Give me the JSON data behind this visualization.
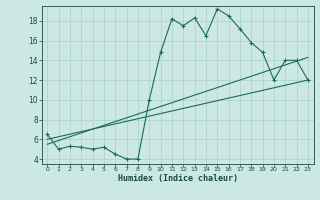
{
  "xlabel": "Humidex (Indice chaleur)",
  "ylabel": "",
  "bg_color": "#cce8e4",
  "grid_color": "#aad0cc",
  "line_color": "#1a6b5a",
  "xlim": [
    -0.5,
    23.5
  ],
  "ylim": [
    3.5,
    19.5
  ],
  "xticks": [
    0,
    1,
    2,
    3,
    4,
    5,
    6,
    7,
    8,
    9,
    10,
    11,
    12,
    13,
    14,
    15,
    16,
    17,
    18,
    19,
    20,
    21,
    22,
    23
  ],
  "yticks": [
    4,
    6,
    8,
    10,
    12,
    14,
    16,
    18
  ],
  "line1_x": [
    0,
    1,
    2,
    3,
    4,
    5,
    6,
    7,
    8,
    9,
    10,
    11,
    12,
    13,
    14,
    15,
    16,
    17,
    18,
    19,
    20,
    21,
    22,
    23
  ],
  "line1_y": [
    6.5,
    5.0,
    5.3,
    5.2,
    5.0,
    5.2,
    4.5,
    4.0,
    4.0,
    10.0,
    14.8,
    18.2,
    17.5,
    18.3,
    16.5,
    19.2,
    18.5,
    17.2,
    15.8,
    14.8,
    12.0,
    14.0,
    14.0,
    12.0
  ],
  "line2_x": [
    0,
    23
  ],
  "line2_y": [
    6.0,
    12.0
  ],
  "line3_x": [
    0,
    23
  ],
  "line3_y": [
    5.5,
    14.3
  ]
}
